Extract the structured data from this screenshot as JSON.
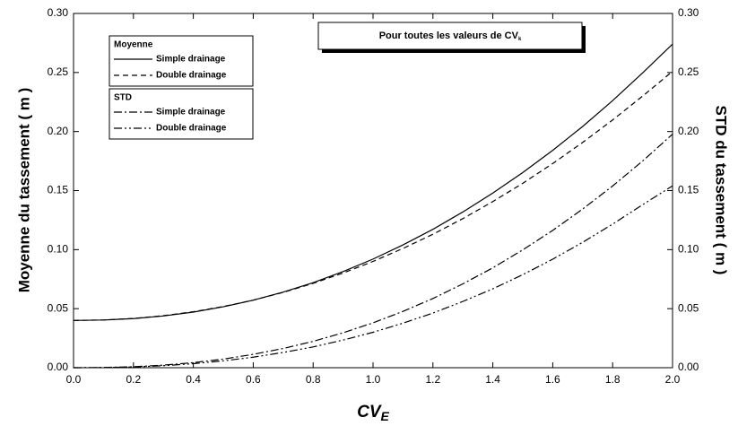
{
  "chart_data": {
    "type": "line",
    "x_label": "CV",
    "x_label_sub": "E",
    "y_label": "Moyenne du tassement ( m )",
    "y2_label": "STD du tassement ( m )",
    "annotation": "Pour  toutes les valeurs de CV",
    "annotation_sub": "k",
    "x": [
      0.0,
      0.1,
      0.2,
      0.3,
      0.4,
      0.5,
      0.6,
      0.7,
      0.8,
      0.9,
      1.0,
      1.1,
      1.2,
      1.3,
      1.4,
      1.5,
      1.6,
      1.7,
      1.8,
      1.9,
      2.0
    ],
    "legend_groups": [
      {
        "title": "Moyenne",
        "axis": "y"
      },
      {
        "title": "STD",
        "axis": "y2"
      }
    ],
    "series": [
      {
        "name": "Simple drainage",
        "color": "#000000",
        "dash": "solid",
        "axis": "y",
        "values": [
          0.04,
          0.0404,
          0.0416,
          0.0438,
          0.0471,
          0.0516,
          0.0572,
          0.064,
          0.072,
          0.0814,
          0.092,
          0.104,
          0.1172,
          0.1319,
          0.1479,
          0.1653,
          0.1841,
          0.2043,
          0.2262,
          0.2496,
          0.274
        ]
      },
      {
        "name": "Double drainage",
        "color": "#000000",
        "dash": "dashed",
        "axis": "y",
        "values": [
          0.04,
          0.0404,
          0.0417,
          0.0441,
          0.0474,
          0.0518,
          0.0572,
          0.0638,
          0.0714,
          0.0802,
          0.09,
          0.101,
          0.113,
          0.1263,
          0.1407,
          0.1562,
          0.1729,
          0.1908,
          0.2098,
          0.23,
          0.251
        ]
      },
      {
        "name": "Simple drainage",
        "color": "#000000",
        "dash": "dashdot",
        "axis": "y2",
        "values": [
          0,
          0.0002,
          0.0008,
          0.0022,
          0.0043,
          0.0073,
          0.0113,
          0.0163,
          0.0223,
          0.0296,
          0.038,
          0.0477,
          0.0586,
          0.071,
          0.0846,
          0.0998,
          0.1163,
          0.1344,
          0.1539,
          0.175,
          0.1978
        ]
      },
      {
        "name": "Double drainage",
        "color": "#000000",
        "dash": "dashdotdot",
        "axis": "y2",
        "values": [
          0,
          0.0001,
          0.0006,
          0.0017,
          0.0034,
          0.0058,
          0.0089,
          0.0129,
          0.0176,
          0.0234,
          0.03,
          0.0377,
          0.0463,
          0.0561,
          0.0668,
          0.0788,
          0.0919,
          0.1062,
          0.1216,
          0.138,
          0.154
        ]
      }
    ],
    "xlim": [
      0,
      2
    ],
    "xticks": [
      {
        "value": 0,
        "label": "0.0"
      },
      0.2,
      0.4,
      0.6,
      0.8,
      {
        "value": 1,
        "label": "1.0"
      },
      1.2,
      1.4,
      1.6,
      1.8,
      {
        "value": 2,
        "label": "2.0"
      }
    ],
    "ylim": [
      0,
      0.3
    ],
    "yticks": [
      {
        "value": 0,
        "label": "0.00"
      },
      {
        "value": 0.05,
        "label": "0.05"
      },
      {
        "value": 0.1,
        "label": "0.10"
      },
      {
        "value": 0.15,
        "label": "0.15"
      },
      {
        "value": 0.2,
        "label": "0.20"
      },
      {
        "value": 0.25,
        "label": "0.25"
      },
      {
        "value": 0.3,
        "label": "0.30"
      }
    ],
    "y2lim": [
      0,
      0.3
    ],
    "y2ticks": [
      {
        "value": 0,
        "label": "0.00"
      },
      {
        "value": 0.05,
        "label": "0.05"
      },
      {
        "value": 0.1,
        "label": "0.10"
      },
      {
        "value": 0.15,
        "label": "0.15"
      },
      {
        "value": 0.2,
        "label": "0.20"
      },
      {
        "value": 0.25,
        "label": "0.25"
      },
      {
        "value": 0.3,
        "label": "0.30"
      }
    ],
    "grid": false
  }
}
